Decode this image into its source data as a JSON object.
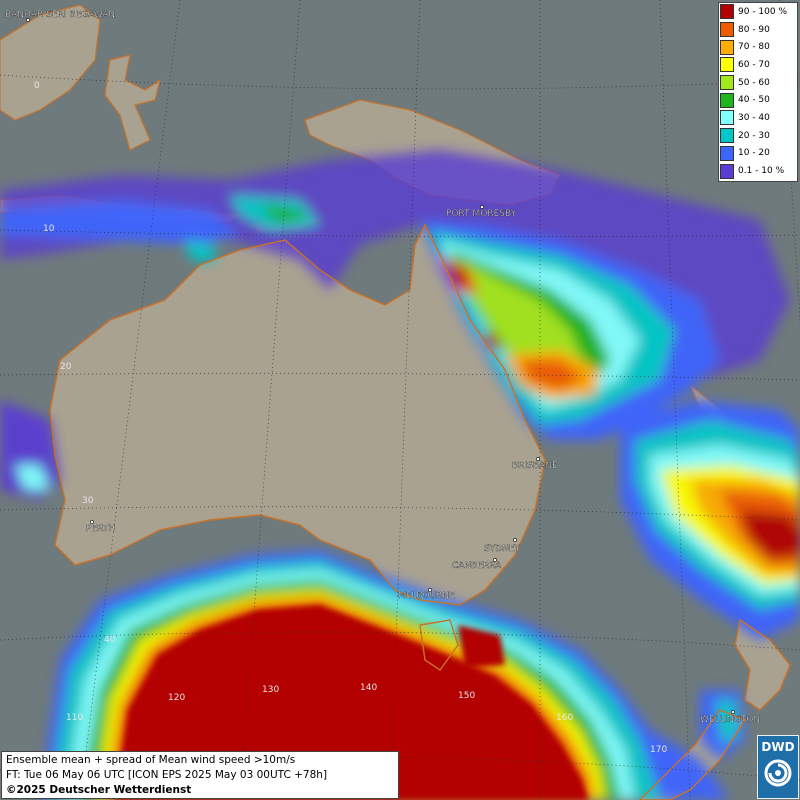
{
  "cities": [
    {
      "name": "BANDAR SERI BEGAWAN"
    },
    {
      "name": "PORT MORESBY"
    },
    {
      "name": "BRISBANE"
    },
    {
      "name": "SYDNEY"
    },
    {
      "name": "CANBERRA"
    },
    {
      "name": "MELBOURNE"
    },
    {
      "name": "PERTH"
    },
    {
      "name": "WELLINGTON"
    }
  ],
  "grid_labels": [
    "0",
    "10",
    "20",
    "30",
    "40",
    "110",
    "120",
    "130",
    "140",
    "150",
    "160",
    "170"
  ],
  "legend": {
    "entries": [
      {
        "label": "90 - 100 %",
        "color": "#b30000"
      },
      {
        "label": "80 - 90",
        "color": "#f05a00"
      },
      {
        "label": "70 - 80",
        "color": "#ffad00"
      },
      {
        "label": "60 - 70",
        "color": "#ffff00"
      },
      {
        "label": "50 - 60",
        "color": "#a4e61e"
      },
      {
        "label": "40 - 50",
        "color": "#1eb41e"
      },
      {
        "label": "30 - 40",
        "color": "#82ffff"
      },
      {
        "label": "20 - 30",
        "color": "#00c8c8"
      },
      {
        "label": "10 - 20",
        "color": "#3c64ff"
      },
      {
        "label": "0.1 - 10 %",
        "color": "#5a3cd2"
      }
    ]
  },
  "info": {
    "line1": "Ensemble mean + spread of Mean wind speed >10m/s",
    "line2": "FT: Tue 06 May 06 UTC [ICON EPS 2025 May 03 00UTC +78h]",
    "copyright": "©2025 Deutscher Wetterdienst"
  },
  "logo": {
    "text": "DWD"
  },
  "colors": {
    "ocean": "#6f7a7c",
    "land": "#a9a291",
    "coastline": "#c8722a"
  }
}
